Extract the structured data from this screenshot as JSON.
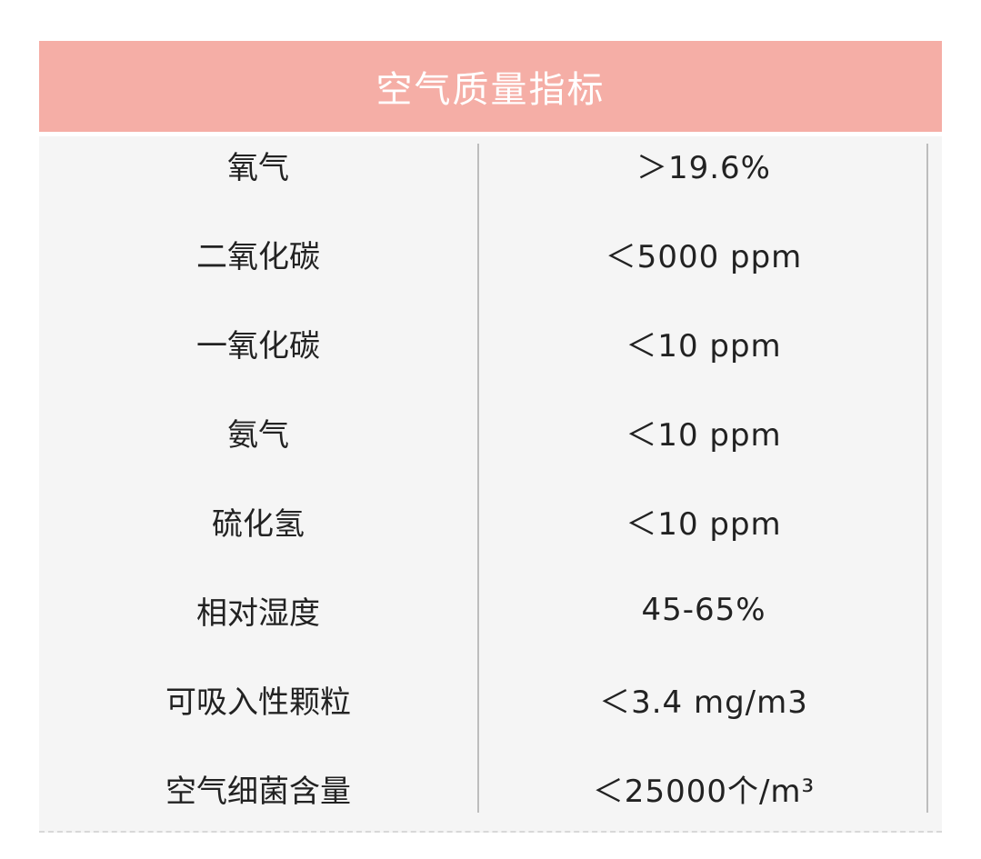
{
  "colors": {
    "accent": "#f5aea6",
    "body_bg": "#f5f5f5"
  },
  "table": {
    "title": "空气质量指标",
    "rows": [
      {
        "name": "氧气",
        "value": "＞19.6%"
      },
      {
        "name": "二氧化碳",
        "value": "＜5000 ppm"
      },
      {
        "name": "一氧化碳",
        "value": "＜10 ppm"
      },
      {
        "name": "氨气",
        "value": "＜10 ppm"
      },
      {
        "name": "硫化氢",
        "value": "＜10 ppm"
      },
      {
        "name": "相对湿度",
        "value": "45-65%"
      },
      {
        "name": "可吸入性颗粒",
        "value": "＜3.4 mg/m3"
      },
      {
        "name": "空气细菌含量",
        "value": "＜25000个/m³"
      }
    ]
  }
}
